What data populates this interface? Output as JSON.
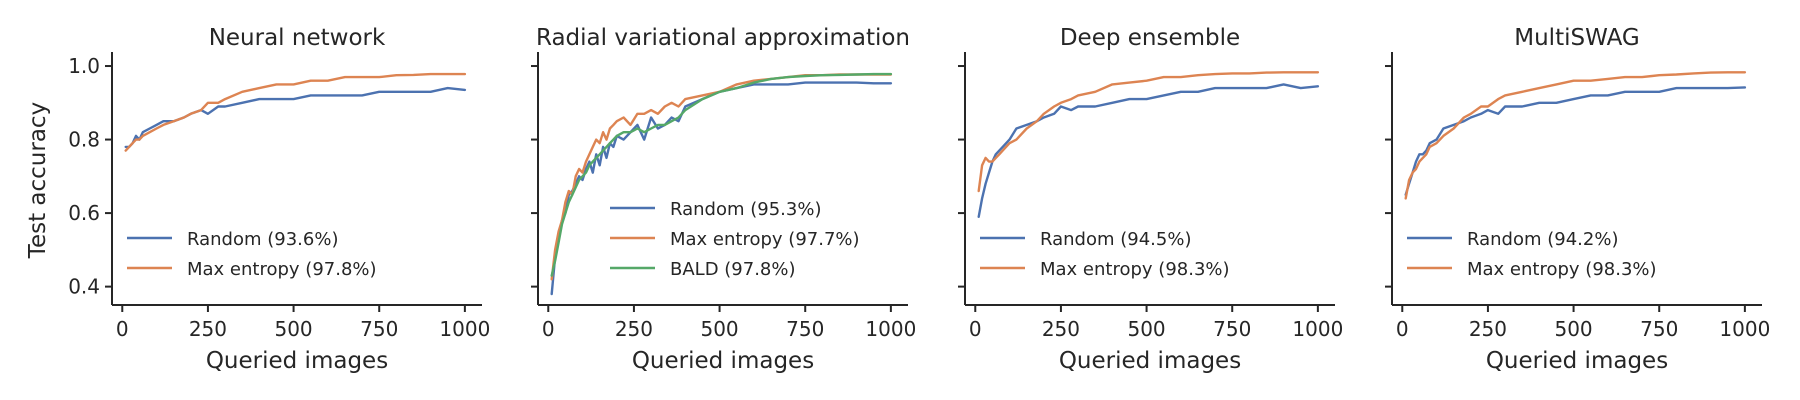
{
  "chart_data": [
    {
      "type": "line",
      "title": "Neural network",
      "xlabel": "Queried images",
      "ylabel": "Test accuracy",
      "xlim": [
        -30,
        1050
      ],
      "ylim": [
        0.35,
        1.03
      ],
      "xticks": [
        0,
        250,
        500,
        750,
        1000
      ],
      "xtick_labels": [
        "0",
        "250",
        "500",
        "750",
        "1000"
      ],
      "yticks": [
        0.4,
        0.6,
        0.8,
        1.0
      ],
      "ytick_labels": [
        "0.4",
        "0.6",
        "0.8",
        "1.0"
      ],
      "grid": false,
      "legend_position": "lower-left",
      "series": [
        {
          "name": "Random (93.6%)",
          "color": "#4c72b0",
          "x": [
            10,
            20,
            30,
            40,
            50,
            60,
            80,
            100,
            120,
            150,
            180,
            200,
            230,
            250,
            280,
            300,
            350,
            400,
            450,
            500,
            550,
            600,
            650,
            700,
            750,
            800,
            850,
            900,
            950,
            1000
          ],
          "y": [
            0.78,
            0.78,
            0.79,
            0.81,
            0.8,
            0.82,
            0.83,
            0.84,
            0.85,
            0.85,
            0.86,
            0.87,
            0.88,
            0.87,
            0.89,
            0.89,
            0.9,
            0.91,
            0.91,
            0.91,
            0.92,
            0.92,
            0.92,
            0.92,
            0.93,
            0.93,
            0.93,
            0.93,
            0.94,
            0.935
          ]
        },
        {
          "name": "Max entropy (97.8%)",
          "color": "#dd8452",
          "x": [
            10,
            20,
            30,
            40,
            50,
            60,
            80,
            100,
            120,
            150,
            180,
            200,
            230,
            250,
            280,
            300,
            350,
            400,
            450,
            500,
            550,
            600,
            650,
            700,
            750,
            800,
            850,
            900,
            950,
            1000
          ],
          "y": [
            0.77,
            0.78,
            0.79,
            0.8,
            0.8,
            0.81,
            0.82,
            0.83,
            0.84,
            0.85,
            0.86,
            0.87,
            0.88,
            0.9,
            0.9,
            0.91,
            0.93,
            0.94,
            0.95,
            0.95,
            0.96,
            0.96,
            0.97,
            0.97,
            0.97,
            0.975,
            0.976,
            0.978,
            0.978,
            0.978
          ]
        }
      ]
    },
    {
      "type": "line",
      "title": "Radial variational approximation",
      "xlabel": "Queried images",
      "ylabel": "",
      "xlim": [
        -30,
        1050
      ],
      "ylim": [
        0.35,
        1.03
      ],
      "xticks": [
        0,
        250,
        500,
        750,
        1000
      ],
      "xtick_labels": [
        "0",
        "250",
        "500",
        "750",
        "1000"
      ],
      "yticks": [
        0.4,
        0.6,
        0.8,
        1.0
      ],
      "ytick_labels": [
        "",
        "",
        "",
        ""
      ],
      "grid": false,
      "legend_position": "lower-right",
      "series": [
        {
          "name": "Random (95.3%)",
          "color": "#4c72b0",
          "x": [
            10,
            20,
            30,
            40,
            50,
            60,
            70,
            80,
            90,
            100,
            110,
            120,
            130,
            140,
            150,
            160,
            170,
            180,
            190,
            200,
            220,
            240,
            260,
            280,
            300,
            320,
            340,
            360,
            380,
            400,
            450,
            500,
            550,
            600,
            650,
            700,
            750,
            800,
            850,
            900,
            950,
            1000
          ],
          "y": [
            0.38,
            0.48,
            0.53,
            0.58,
            0.6,
            0.65,
            0.66,
            0.68,
            0.7,
            0.69,
            0.72,
            0.74,
            0.71,
            0.76,
            0.73,
            0.78,
            0.75,
            0.79,
            0.78,
            0.81,
            0.8,
            0.82,
            0.84,
            0.8,
            0.86,
            0.83,
            0.84,
            0.86,
            0.85,
            0.89,
            0.91,
            0.93,
            0.94,
            0.95,
            0.95,
            0.95,
            0.955,
            0.955,
            0.955,
            0.955,
            0.953,
            0.953
          ]
        },
        {
          "name": "Max entropy (97.7%)",
          "color": "#dd8452",
          "x": [
            10,
            20,
            30,
            40,
            50,
            60,
            70,
            80,
            90,
            100,
            110,
            120,
            130,
            140,
            150,
            160,
            170,
            180,
            190,
            200,
            220,
            240,
            260,
            280,
            300,
            320,
            340,
            360,
            380,
            400,
            450,
            500,
            550,
            600,
            650,
            700,
            750,
            800,
            850,
            900,
            950,
            1000
          ],
          "y": [
            0.42,
            0.5,
            0.55,
            0.58,
            0.63,
            0.66,
            0.65,
            0.7,
            0.72,
            0.71,
            0.74,
            0.76,
            0.78,
            0.8,
            0.79,
            0.82,
            0.8,
            0.83,
            0.84,
            0.85,
            0.86,
            0.84,
            0.87,
            0.87,
            0.88,
            0.87,
            0.89,
            0.9,
            0.89,
            0.91,
            0.92,
            0.93,
            0.95,
            0.96,
            0.965,
            0.97,
            0.975,
            0.975,
            0.977,
            0.977,
            0.977,
            0.977
          ]
        },
        {
          "name": "BALD (97.8%)",
          "color": "#55a868",
          "x": [
            10,
            20,
            30,
            40,
            50,
            60,
            70,
            80,
            90,
            100,
            110,
            120,
            130,
            140,
            150,
            160,
            170,
            180,
            190,
            200,
            220,
            240,
            260,
            280,
            300,
            320,
            340,
            360,
            380,
            400,
            450,
            500,
            550,
            600,
            650,
            700,
            750,
            800,
            850,
            900,
            950,
            1000
          ],
          "y": [
            0.43,
            0.47,
            0.52,
            0.57,
            0.6,
            0.63,
            0.65,
            0.67,
            0.69,
            0.7,
            0.71,
            0.73,
            0.74,
            0.75,
            0.76,
            0.77,
            0.78,
            0.79,
            0.8,
            0.81,
            0.82,
            0.82,
            0.83,
            0.82,
            0.83,
            0.84,
            0.84,
            0.85,
            0.86,
            0.88,
            0.91,
            0.93,
            0.94,
            0.955,
            0.965,
            0.97,
            0.973,
            0.975,
            0.976,
            0.977,
            0.978,
            0.978
          ]
        }
      ]
    },
    {
      "type": "line",
      "title": "Deep ensemble",
      "xlabel": "Queried images",
      "ylabel": "",
      "xlim": [
        -30,
        1050
      ],
      "ylim": [
        0.35,
        1.03
      ],
      "xticks": [
        0,
        250,
        500,
        750,
        1000
      ],
      "xtick_labels": [
        "0",
        "250",
        "500",
        "750",
        "1000"
      ],
      "yticks": [
        0.4,
        0.6,
        0.8,
        1.0
      ],
      "ytick_labels": [
        "",
        "",
        "",
        ""
      ],
      "grid": false,
      "legend_position": "lower-left",
      "series": [
        {
          "name": "Random (94.5%)",
          "color": "#4c72b0",
          "x": [
            10,
            20,
            30,
            40,
            50,
            60,
            70,
            80,
            100,
            120,
            150,
            180,
            200,
            230,
            250,
            280,
            300,
            350,
            400,
            450,
            500,
            550,
            600,
            650,
            700,
            750,
            800,
            850,
            900,
            950,
            1000
          ],
          "y": [
            0.59,
            0.64,
            0.68,
            0.71,
            0.74,
            0.76,
            0.77,
            0.78,
            0.8,
            0.83,
            0.84,
            0.85,
            0.86,
            0.87,
            0.89,
            0.88,
            0.89,
            0.89,
            0.9,
            0.91,
            0.91,
            0.92,
            0.93,
            0.93,
            0.94,
            0.94,
            0.94,
            0.94,
            0.95,
            0.94,
            0.945
          ]
        },
        {
          "name": "Max entropy (98.3%)",
          "color": "#dd8452",
          "x": [
            10,
            20,
            30,
            40,
            50,
            60,
            70,
            80,
            100,
            120,
            150,
            180,
            200,
            230,
            250,
            280,
            300,
            350,
            400,
            450,
            500,
            550,
            600,
            650,
            700,
            750,
            800,
            850,
            900,
            950,
            1000
          ],
          "y": [
            0.66,
            0.73,
            0.75,
            0.74,
            0.74,
            0.75,
            0.76,
            0.77,
            0.79,
            0.8,
            0.83,
            0.85,
            0.87,
            0.89,
            0.9,
            0.91,
            0.92,
            0.93,
            0.95,
            0.955,
            0.96,
            0.97,
            0.97,
            0.975,
            0.978,
            0.98,
            0.98,
            0.982,
            0.983,
            0.983,
            0.983
          ]
        }
      ]
    },
    {
      "type": "line",
      "title": "MultiSWAG",
      "xlabel": "Queried images",
      "ylabel": "",
      "xlim": [
        -30,
        1050
      ],
      "ylim": [
        0.35,
        1.03
      ],
      "xticks": [
        0,
        250,
        500,
        750,
        1000
      ],
      "xtick_labels": [
        "0",
        "250",
        "500",
        "750",
        "1000"
      ],
      "yticks": [
        0.4,
        0.6,
        0.8,
        1.0
      ],
      "ytick_labels": [
        "",
        "",
        "",
        ""
      ],
      "grid": false,
      "legend_position": "lower-left",
      "series": [
        {
          "name": "Random (94.2%)",
          "color": "#4c72b0",
          "x": [
            10,
            20,
            30,
            40,
            50,
            60,
            70,
            80,
            100,
            120,
            150,
            180,
            200,
            230,
            250,
            280,
            300,
            350,
            400,
            450,
            500,
            550,
            600,
            650,
            700,
            750,
            800,
            850,
            900,
            950,
            1000
          ],
          "y": [
            0.65,
            0.68,
            0.71,
            0.74,
            0.76,
            0.76,
            0.77,
            0.79,
            0.8,
            0.83,
            0.84,
            0.85,
            0.86,
            0.87,
            0.88,
            0.87,
            0.89,
            0.89,
            0.9,
            0.9,
            0.91,
            0.92,
            0.92,
            0.93,
            0.93,
            0.93,
            0.94,
            0.94,
            0.94,
            0.94,
            0.942
          ]
        },
        {
          "name": "Max entropy (98.3%)",
          "color": "#dd8452",
          "x": [
            10,
            20,
            30,
            40,
            50,
            60,
            70,
            80,
            100,
            120,
            150,
            180,
            200,
            230,
            250,
            280,
            300,
            350,
            400,
            450,
            500,
            550,
            600,
            650,
            700,
            750,
            800,
            850,
            900,
            950,
            1000
          ],
          "y": [
            0.64,
            0.69,
            0.71,
            0.72,
            0.74,
            0.75,
            0.76,
            0.78,
            0.79,
            0.81,
            0.83,
            0.86,
            0.87,
            0.89,
            0.89,
            0.91,
            0.92,
            0.93,
            0.94,
            0.95,
            0.96,
            0.96,
            0.965,
            0.97,
            0.97,
            0.975,
            0.977,
            0.98,
            0.982,
            0.983,
            0.983
          ]
        }
      ]
    }
  ]
}
